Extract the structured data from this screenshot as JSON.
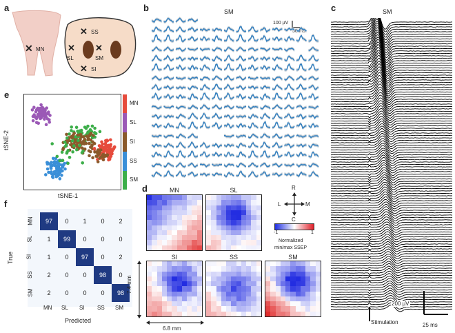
{
  "panels": {
    "a": "a",
    "b": "b",
    "c": "c",
    "d": "d",
    "e": "e",
    "f": "f"
  },
  "panel_a": {
    "mn_label": "MN",
    "sites": [
      "SS",
      "SL",
      "SM",
      "SI"
    ]
  },
  "panel_b": {
    "title": "SM",
    "scale_v": "100 µV",
    "scale_t": "50 ms"
  },
  "panel_c": {
    "title": "SM",
    "scale_v": "200 µV",
    "stim_label": "Stimulation",
    "scale_t": "25 ms"
  },
  "panel_e": {
    "xlabel": "tSNE-1",
    "ylabel": "tSNE-2",
    "legend": [
      "MN",
      "SL",
      "SI",
      "SS",
      "SM"
    ],
    "colors": {
      "MN": "#e64b3c",
      "SL": "#9b59b6",
      "SI": "#8b5a2b",
      "SS": "#3a8fd8",
      "SM": "#3cae49"
    }
  },
  "panel_d": {
    "maps": [
      "MN",
      "SL",
      "SI",
      "SS",
      "SM"
    ],
    "compass": {
      "r": "R",
      "l": "L",
      "m": "M",
      "c": "C"
    },
    "colorbar": {
      "min": "-1",
      "max": "1",
      "caption1": "Normalized",
      "caption2": "min/max SSEP"
    },
    "dim_v": "7.4 mm",
    "dim_h": "6.8 mm"
  },
  "chart_data": {
    "type": "table",
    "title": "",
    "row_labels": [
      "MN",
      "SL",
      "SI",
      "SS",
      "SM"
    ],
    "col_labels": [
      "MN",
      "SL",
      "SI",
      "SS",
      "SM"
    ],
    "values": [
      [
        97,
        0,
        1,
        0,
        2
      ],
      [
        1,
        99,
        0,
        0,
        0
      ],
      [
        1,
        0,
        97,
        0,
        2
      ],
      [
        2,
        0,
        0,
        98,
        0
      ],
      [
        2,
        0,
        0,
        0,
        98
      ]
    ],
    "xlabel": "Predicted",
    "ylabel": "True"
  }
}
